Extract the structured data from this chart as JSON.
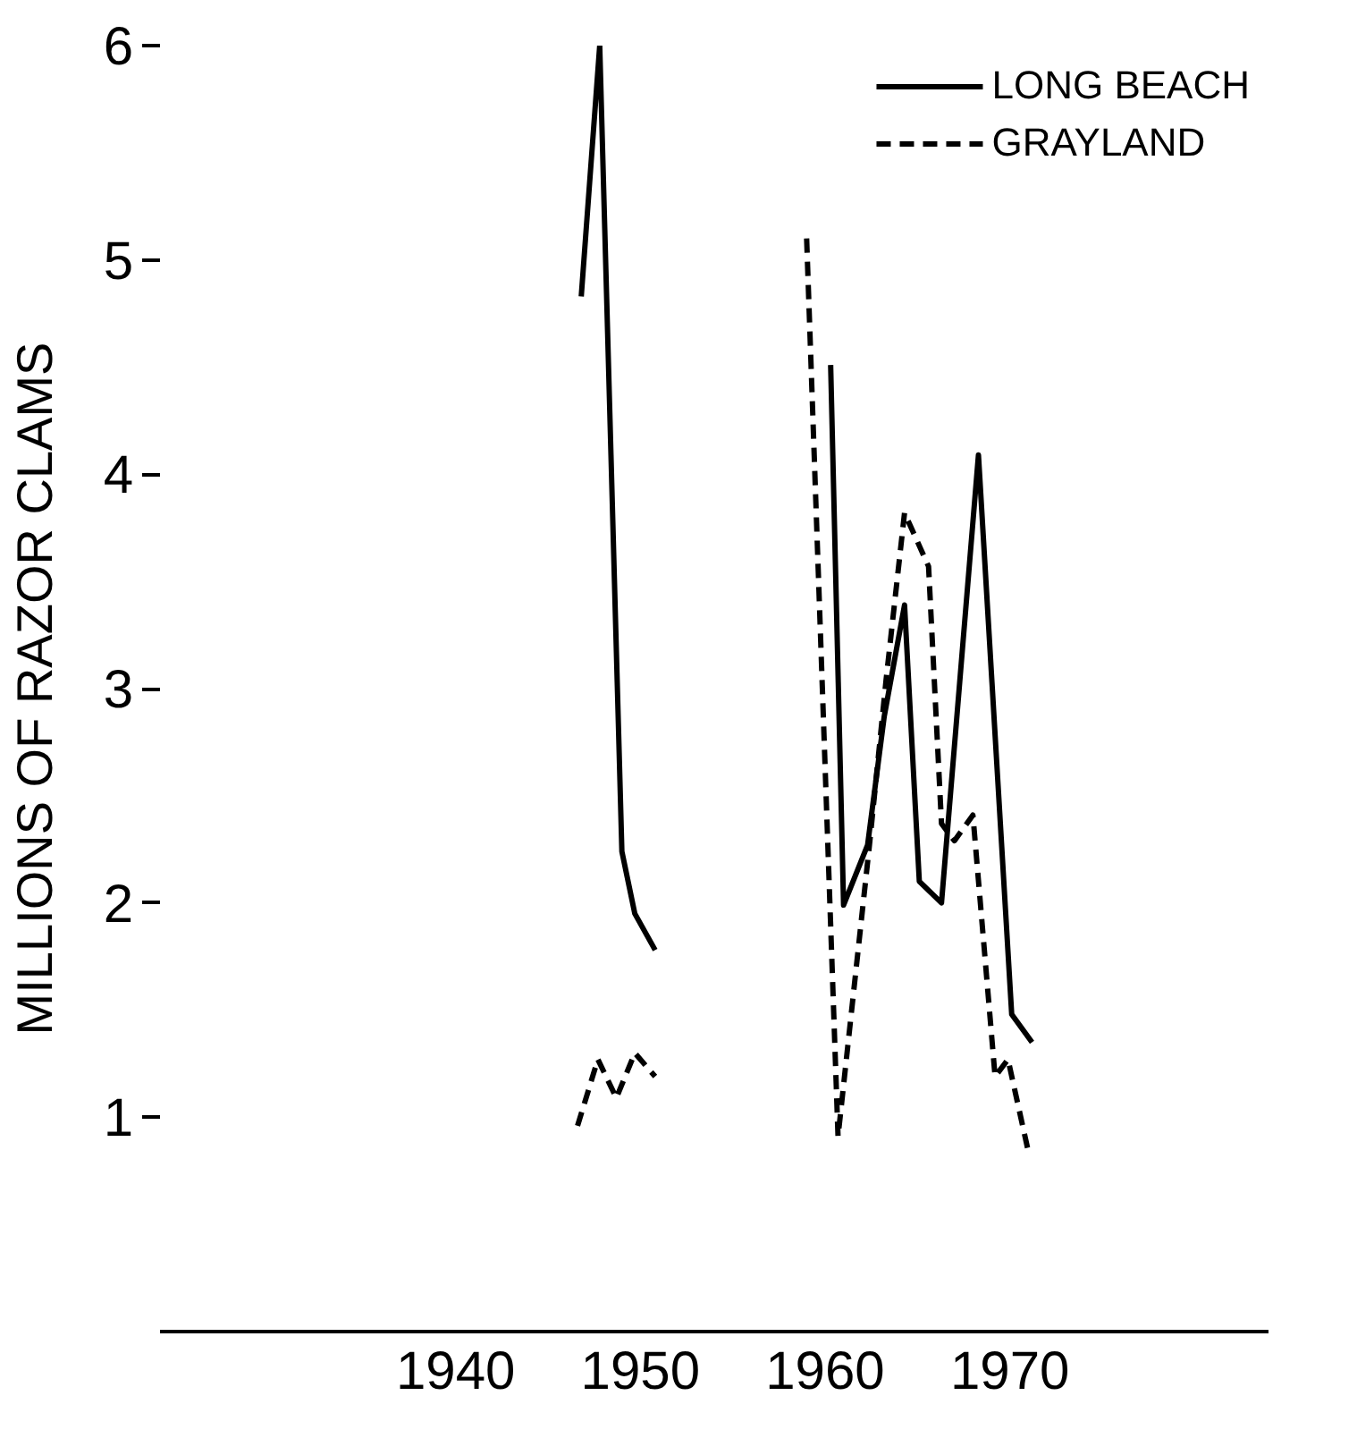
{
  "chart_data": {
    "type": "line",
    "ylabel": "MILLIONS OF RAZOR CLAMS",
    "xlim": [
      1924,
      1984
    ],
    "xticks": [
      1940,
      1950,
      1960,
      1970
    ],
    "ylim": [
      0,
      6
    ],
    "yticks": [
      1,
      2,
      3,
      4,
      5,
      6
    ],
    "grid": false,
    "legend": "top right",
    "tick_labels": true,
    "series": [
      {
        "name": "LONG BEACH",
        "color": "#000000",
        "line_style": "solid",
        "x": [
          1946.8,
          1947.8,
          1949.0,
          1949.7,
          1950.8,
          1955,
          1960.3,
          1961.0,
          1962.3,
          1963.2,
          1964.3,
          1965.1,
          1966.3,
          1968.3,
          1970.1,
          1971.2
        ],
        "values": [
          4.83,
          6.0,
          2.24,
          1.95,
          1.78,
          null,
          4.51,
          1.99,
          2.27,
          2.87,
          3.39,
          2.1,
          2.0,
          4.09,
          1.48,
          1.35
        ]
      },
      {
        "name": "GRAYLAND",
        "color": "#000000",
        "line_style": "dashed",
        "x": [
          1946.6,
          1947.7,
          1948.7,
          1949.7,
          1950.8,
          1955,
          1959.0,
          1960.7,
          1962.4,
          1963.3,
          1964.3,
          1965.6,
          1966.3,
          1967.0,
          1968.0,
          1969.2,
          1969.9,
          1971.0
        ],
        "values": [
          0.96,
          1.27,
          1.09,
          1.3,
          1.19,
          null,
          5.1,
          0.91,
          2.27,
          3.04,
          3.82,
          3.57,
          2.37,
          2.29,
          2.41,
          1.19,
          1.27,
          0.84
        ]
      }
    ]
  }
}
